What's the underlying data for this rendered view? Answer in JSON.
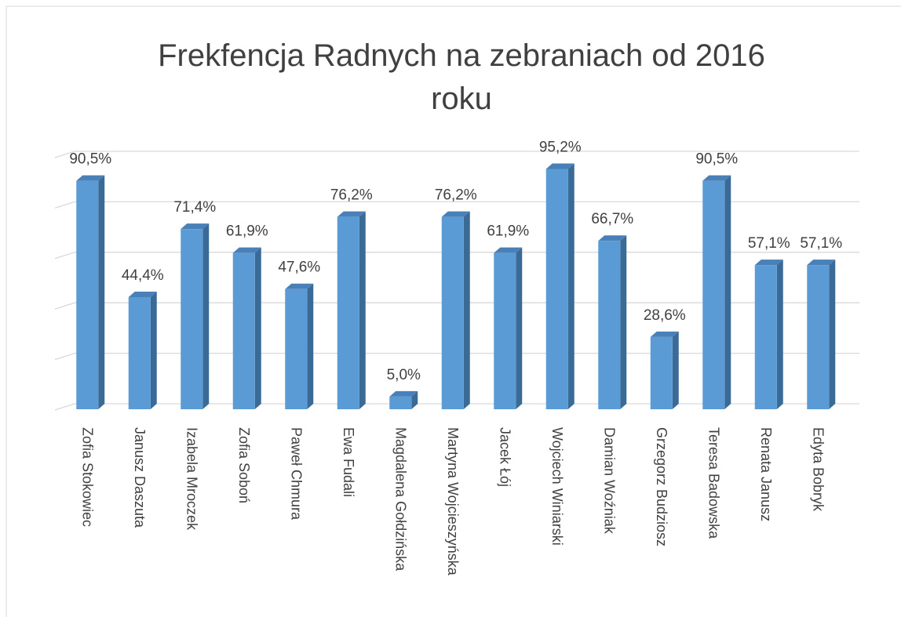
{
  "chart_data": {
    "type": "bar3d",
    "title": [
      "Frekfencja Radnych na zebraniach od 2016",
      "roku"
    ],
    "categories": [
      "Zofia Stokowiec",
      "Janusz Daszuta",
      "Izabela Mroczek",
      "Zofia Soboń",
      "Paweł Chmura",
      "Ewa Fudali",
      "Magdalena Gołdzińska",
      "Martyna Wojcieszyńska",
      "Jacek Łój",
      "Wojciech Winiarski",
      "Damian Woźniak",
      "Grzegorz Budziosz",
      "Teresa Badowska",
      "Renata Janusz",
      "Edyta Bobryk"
    ],
    "values": [
      90.5,
      44.4,
      71.4,
      61.9,
      47.6,
      76.2,
      5.0,
      76.2,
      61.9,
      95.2,
      66.7,
      28.6,
      90.5,
      57.1,
      57.1
    ],
    "value_labels": [
      "90,5%",
      "44,4%",
      "71,4%",
      "61,9%",
      "47,6%",
      "76,2%",
      "5,0%",
      "76,2%",
      "61,9%",
      "95,2%",
      "66,7%",
      "28,6%",
      "90,5%",
      "57,1%",
      "57,1%"
    ],
    "color": "#5b9bd5",
    "ylim": [
      0,
      100
    ],
    "yticks": [
      0,
      20,
      40,
      60,
      80,
      100
    ],
    "grid": true
  }
}
